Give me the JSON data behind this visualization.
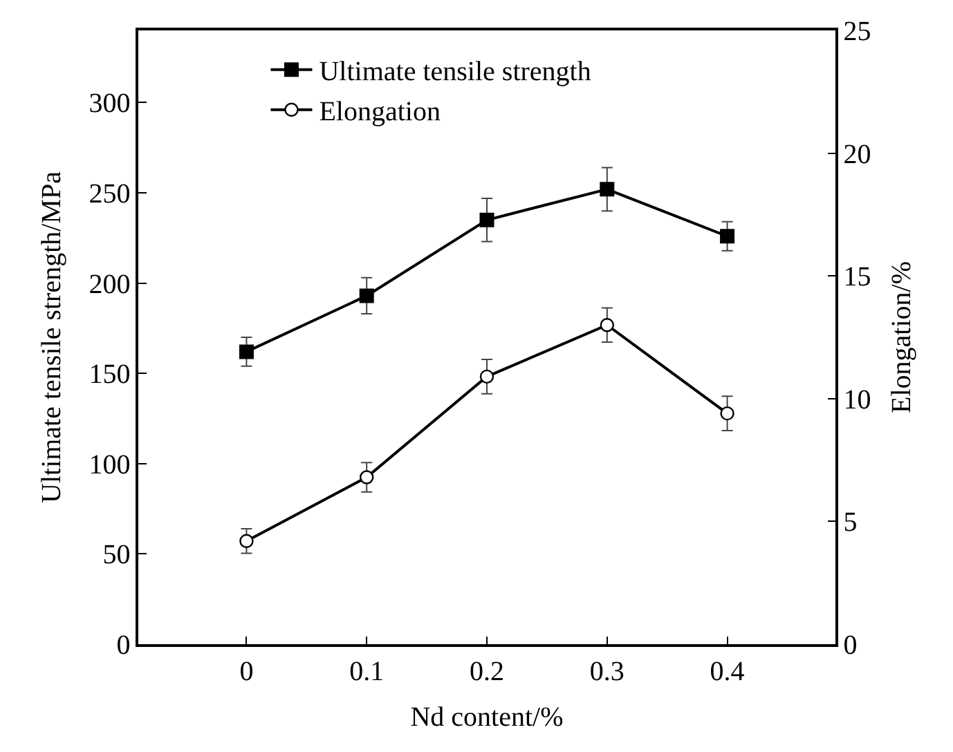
{
  "chart_data": {
    "type": "line",
    "xlabel": "Nd content/%",
    "ylabel": "Ultimate tensile strength/MPa",
    "y2label": "Elongation/%",
    "x": [
      0,
      0.1,
      0.2,
      0.3,
      0.4
    ],
    "series": [
      {
        "name": "Ultimate tensile strength",
        "color": "#000000",
        "marker": "square",
        "values": [
          162,
          193,
          235,
          252,
          226
        ],
        "errors": [
          8,
          10,
          12,
          12,
          8
        ]
      },
      {
        "name": "Elongation",
        "color": "#000000",
        "marker": "circle",
        "axis": "y2",
        "values": [
          4.2,
          6.8,
          10.9,
          13.0,
          9.4
        ],
        "errors": [
          0.5,
          0.6,
          0.7,
          0.7,
          0.7
        ]
      }
    ],
    "xlim": [
      -0.09,
      0.49
    ],
    "xticks": [
      0,
      0.1,
      0.2,
      0.3,
      0.4
    ],
    "ylim": [
      0,
      340
    ],
    "yticks": [
      0,
      50,
      100,
      150,
      200,
      250,
      300
    ],
    "y2lim": [
      0,
      25
    ],
    "y2ticks": [
      0,
      5,
      10,
      15,
      20,
      25
    ],
    "legend": "top left",
    "line_style": "solid"
  }
}
